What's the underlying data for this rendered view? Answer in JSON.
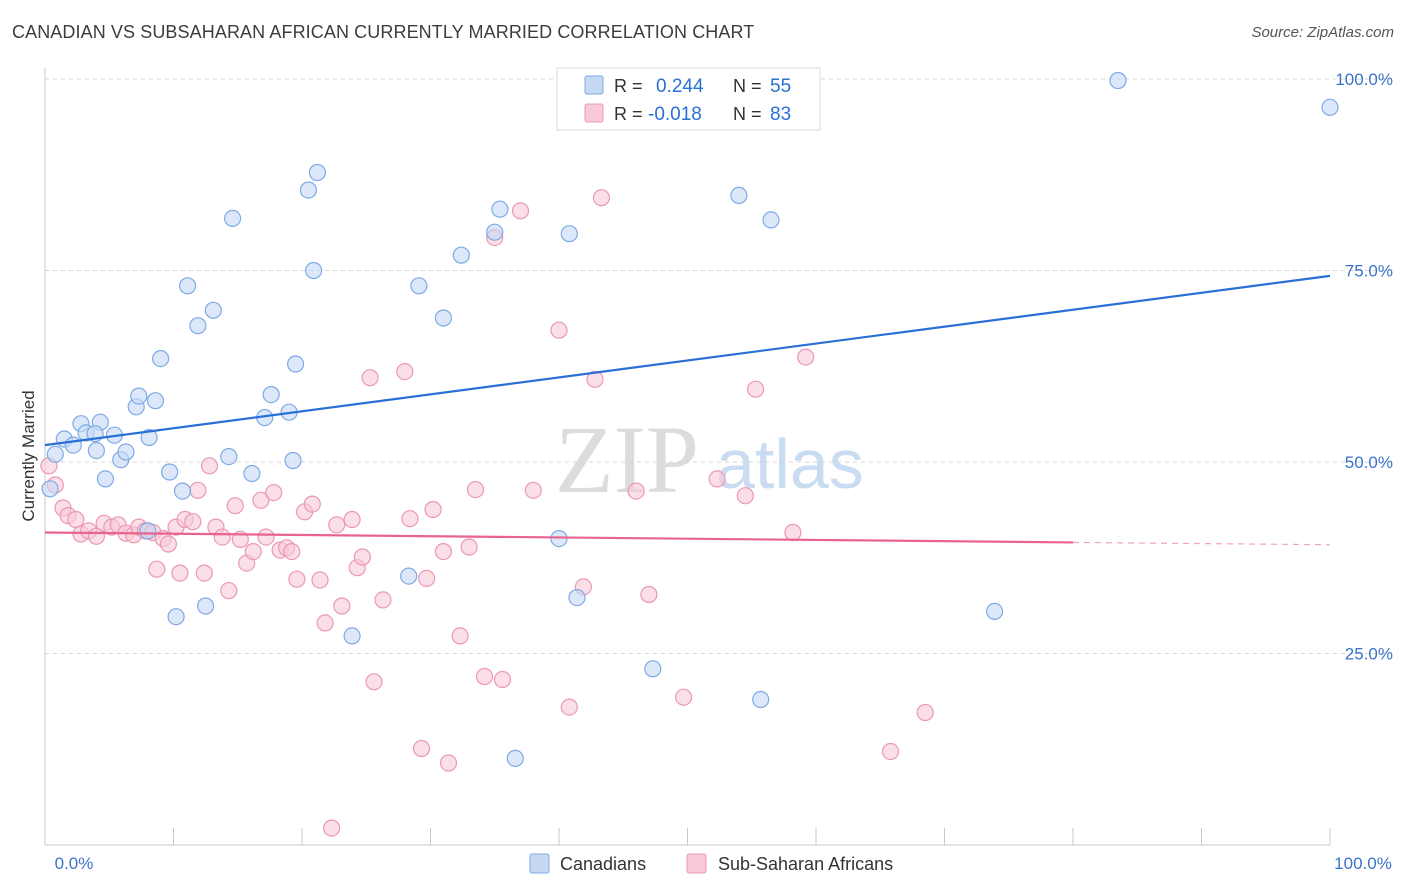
{
  "title": "CANADIAN VS SUBSAHARAN AFRICAN CURRENTLY MARRIED CORRELATION CHART",
  "source": "Source: ZipAtlas.com",
  "watermark": {
    "zip": "ZIP",
    "atlas": "atlas"
  },
  "colors": {
    "blue": "#2970d6",
    "blue_fill": "#c5d9f5",
    "blue_stroke": "#7eaae6",
    "pink": "#e8648f",
    "pink_fill": "#f8c9d8",
    "pink_stroke": "#eb98b3",
    "axis_text": "#3b73c8",
    "grid": "#d5d5d5"
  },
  "legend": {
    "rows": [
      {
        "r_label": "R =",
        "r_value": "0.244",
        "n_label": "N =",
        "n_value": "55",
        "series": "blue"
      },
      {
        "r_label": "R =",
        "r_value": "-0.018",
        "n_label": "N =",
        "n_value": "83",
        "series": "pink"
      }
    ]
  },
  "bottom_legend": [
    "Canadians",
    "Sub-Saharan Africans"
  ],
  "chart_data": {
    "type": "scatter",
    "title": "CANADIAN VS SUBSAHARAN AFRICAN CURRENTLY MARRIED CORRELATION CHART",
    "xlabel": "",
    "ylabel": "Currently Married",
    "xlim": [
      0,
      100
    ],
    "ylim": [
      0,
      102
    ],
    "x_tick_labels": [
      "0.0%",
      "100.0%"
    ],
    "y_tick_labels": [
      {
        "value": 25,
        "label": "25.0%"
      },
      {
        "value": 50,
        "label": "50.0%"
      },
      {
        "value": 75,
        "label": "75.0%"
      },
      {
        "value": 100,
        "label": "100.0%"
      }
    ],
    "grid": true,
    "legend_placement": "top-center",
    "series": [
      {
        "name": "Canadians",
        "color": "blue",
        "trend": {
          "x": [
            0,
            100
          ],
          "y": [
            52.2,
            74.3
          ]
        },
        "points": [
          [
            0.4,
            46.5
          ],
          [
            0.8,
            51
          ],
          [
            1.5,
            53
          ],
          [
            2.2,
            52.2
          ],
          [
            2.8,
            55
          ],
          [
            3.2,
            53.8
          ],
          [
            4,
            51.5
          ],
          [
            4.3,
            55.2
          ],
          [
            4.7,
            47.8
          ],
          [
            5.4,
            53.5
          ],
          [
            5.9,
            50.3
          ],
          [
            6.3,
            51.3
          ],
          [
            7.1,
            57.2
          ],
          [
            7.3,
            58.6
          ],
          [
            8.1,
            53.2
          ],
          [
            8.6,
            58
          ],
          [
            9,
            63.5
          ],
          [
            9.7,
            48.7
          ],
          [
            10.2,
            29.8
          ],
          [
            10.7,
            46.2
          ],
          [
            11.1,
            73
          ],
          [
            11.9,
            67.8
          ],
          [
            12.5,
            31.2
          ],
          [
            13.1,
            69.8
          ],
          [
            14.3,
            50.7
          ],
          [
            14.6,
            81.8
          ],
          [
            16.1,
            48.5
          ],
          [
            17.1,
            55.8
          ],
          [
            17.6,
            58.8
          ],
          [
            19,
            56.5
          ],
          [
            19.3,
            50.2
          ],
          [
            19.5,
            62.8
          ],
          [
            20.5,
            85.5
          ],
          [
            20.9,
            75
          ],
          [
            21.2,
            87.8
          ],
          [
            23.9,
            27.3
          ],
          [
            28.3,
            35.1
          ],
          [
            29.1,
            73
          ],
          [
            31,
            68.8
          ],
          [
            32.4,
            77
          ],
          [
            35,
            80
          ],
          [
            35.4,
            83
          ],
          [
            36.6,
            11.3
          ],
          [
            40,
            40
          ],
          [
            40.8,
            79.8
          ],
          [
            41.4,
            32.3
          ],
          [
            47.3,
            23
          ],
          [
            54,
            84.8
          ],
          [
            55.7,
            19
          ],
          [
            56.5,
            81.6
          ],
          [
            73.9,
            30.5
          ],
          [
            83.5,
            99.8
          ],
          [
            100,
            96.3
          ],
          [
            8,
            41
          ],
          [
            3.9,
            53.7
          ]
        ]
      },
      {
        "name": "Sub-Saharan Africans",
        "color": "pink",
        "trend": {
          "x": [
            0,
            80
          ],
          "y": [
            40.8,
            39.5
          ]
        },
        "trend_dashed": {
          "x": [
            80,
            100
          ],
          "y": [
            39.5,
            39.2
          ]
        },
        "points": [
          [
            0.3,
            49.5
          ],
          [
            0.8,
            47
          ],
          [
            1.4,
            44
          ],
          [
            1.8,
            43
          ],
          [
            2.4,
            42.5
          ],
          [
            2.8,
            40.6
          ],
          [
            3.4,
            41
          ],
          [
            4,
            40.3
          ],
          [
            4.6,
            42
          ],
          [
            5.2,
            41.5
          ],
          [
            5.7,
            41.8
          ],
          [
            6.3,
            40.7
          ],
          [
            6.9,
            40.5
          ],
          [
            7.3,
            41.5
          ],
          [
            7.8,
            41
          ],
          [
            8.4,
            40.8
          ],
          [
            8.7,
            36
          ],
          [
            9.2,
            40
          ],
          [
            9.6,
            39.3
          ],
          [
            10.2,
            41.5
          ],
          [
            10.5,
            35.5
          ],
          [
            10.9,
            42.5
          ],
          [
            11.5,
            42.2
          ],
          [
            11.9,
            46.3
          ],
          [
            12.4,
            35.5
          ],
          [
            12.8,
            49.5
          ],
          [
            13.3,
            41.5
          ],
          [
            13.8,
            40.2
          ],
          [
            14.3,
            33.2
          ],
          [
            14.8,
            44.3
          ],
          [
            15.2,
            39.9
          ],
          [
            15.7,
            36.8
          ],
          [
            16.2,
            38.3
          ],
          [
            16.8,
            45
          ],
          [
            17.2,
            40.2
          ],
          [
            17.8,
            46
          ],
          [
            18.3,
            38.5
          ],
          [
            18.8,
            38.8
          ],
          [
            19.2,
            38.3
          ],
          [
            19.6,
            34.7
          ],
          [
            20.2,
            43.5
          ],
          [
            20.8,
            44.5
          ],
          [
            21.4,
            34.6
          ],
          [
            21.8,
            29
          ],
          [
            22.3,
            2.2
          ],
          [
            22.7,
            41.8
          ],
          [
            23.1,
            31.2
          ],
          [
            23.9,
            42.5
          ],
          [
            24.3,
            36.2
          ],
          [
            24.7,
            37.6
          ],
          [
            25.3,
            61
          ],
          [
            25.6,
            21.3
          ],
          [
            26.3,
            32
          ],
          [
            28,
            61.8
          ],
          [
            29.3,
            12.6
          ],
          [
            29.7,
            34.8
          ],
          [
            30.2,
            43.8
          ],
          [
            31,
            38.3
          ],
          [
            31.4,
            10.7
          ],
          [
            32.3,
            27.3
          ],
          [
            33,
            38.9
          ],
          [
            33.5,
            46.4
          ],
          [
            34.2,
            22
          ],
          [
            35,
            79.3
          ],
          [
            35.6,
            21.6
          ],
          [
            37,
            82.8
          ],
          [
            38,
            46.3
          ],
          [
            40,
            67.2
          ],
          [
            40.8,
            18
          ],
          [
            41.9,
            33.7
          ],
          [
            42.8,
            60.8
          ],
          [
            43.3,
            84.5
          ],
          [
            46,
            46.2
          ],
          [
            47,
            32.7
          ],
          [
            49.7,
            19.3
          ],
          [
            52.3,
            47.8
          ],
          [
            54.5,
            45.6
          ],
          [
            55.3,
            59.5
          ],
          [
            58.2,
            40.8
          ],
          [
            59.2,
            63.7
          ],
          [
            65.8,
            12.2
          ],
          [
            68.5,
            17.3
          ],
          [
            28.4,
            42.6
          ]
        ]
      }
    ]
  }
}
